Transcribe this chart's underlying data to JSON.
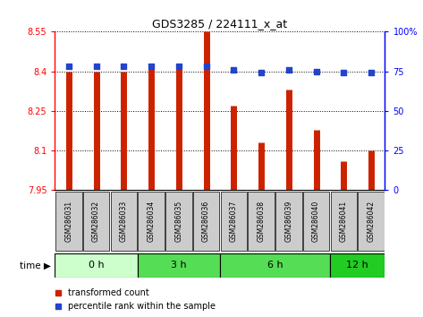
{
  "title": "GDS3285 / 224111_x_at",
  "samples": [
    "GSM286031",
    "GSM286032",
    "GSM286033",
    "GSM286034",
    "GSM286035",
    "GSM286036",
    "GSM286037",
    "GSM286038",
    "GSM286039",
    "GSM286040",
    "GSM286041",
    "GSM286042"
  ],
  "transformed_count": [
    8.4,
    8.4,
    8.4,
    8.42,
    8.42,
    8.55,
    8.27,
    8.13,
    8.33,
    8.18,
    8.06,
    8.1
  ],
  "percentile_rank": [
    78,
    78,
    78,
    78,
    78,
    78,
    76,
    74,
    76,
    75,
    74,
    74
  ],
  "ymin": 7.95,
  "ymax": 8.55,
  "yticks": [
    7.95,
    8.1,
    8.25,
    8.4,
    8.55
  ],
  "ytick_labels": [
    "7.95",
    "8.1",
    "8.25",
    "8.4",
    "8.55"
  ],
  "y2min": 0,
  "y2max": 100,
  "y2ticks": [
    0,
    25,
    50,
    75,
    100
  ],
  "y2tick_labels": [
    "0",
    "25",
    "50",
    "75",
    "100%"
  ],
  "time_groups": [
    {
      "label": "0 h",
      "start": 0,
      "end": 3,
      "color": "#ccffcc"
    },
    {
      "label": "3 h",
      "start": 3,
      "end": 6,
      "color": "#55dd55"
    },
    {
      "label": "6 h",
      "start": 6,
      "end": 10,
      "color": "#55dd55"
    },
    {
      "label": "12 h",
      "start": 10,
      "end": 12,
      "color": "#22cc22"
    }
  ],
  "bar_color": "#cc2200",
  "dot_color": "#2244cc",
  "sample_box_color": "#cccccc",
  "legend_items": [
    "transformed count",
    "percentile rank within the sample"
  ],
  "fig_width": 4.73,
  "fig_height": 3.54
}
